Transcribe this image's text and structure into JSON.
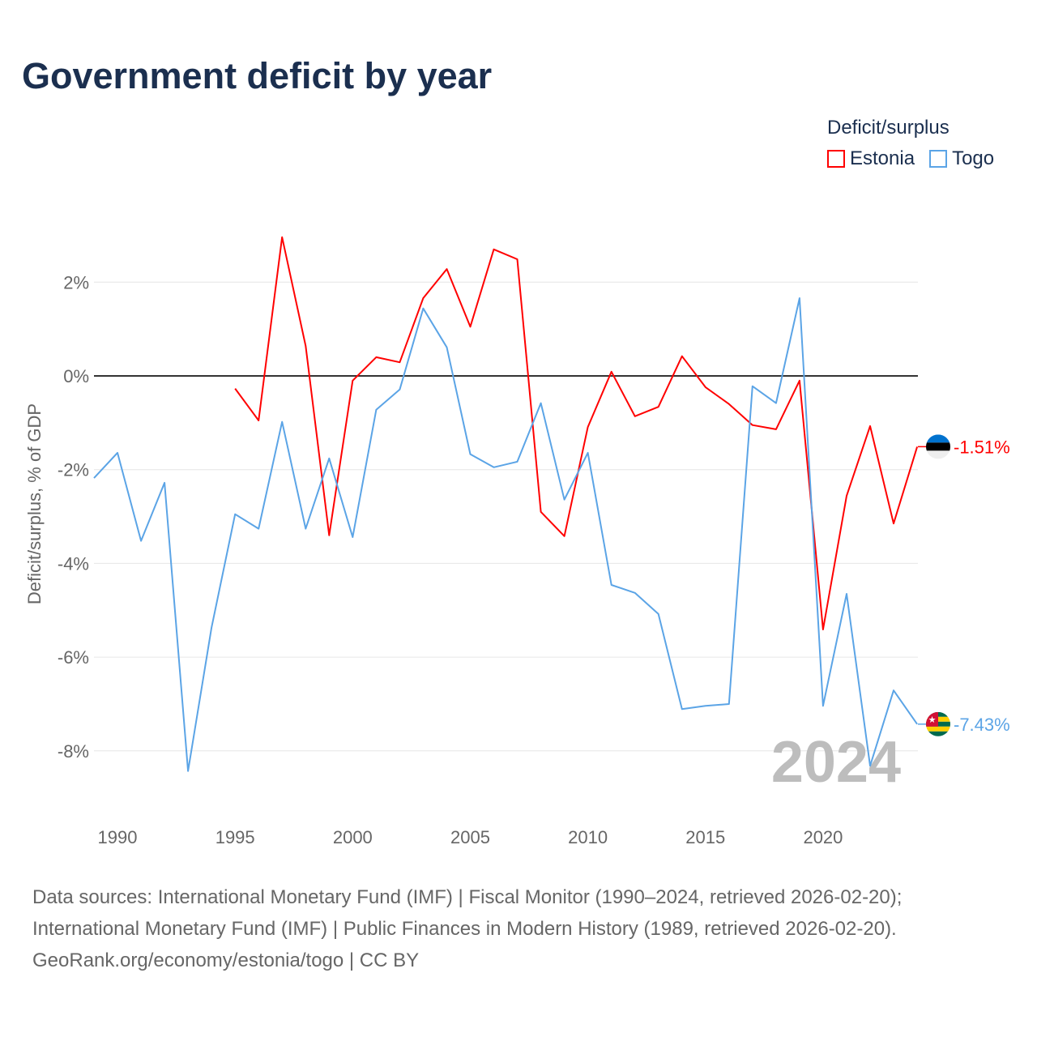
{
  "chart_data": {
    "type": "line",
    "title": "Government deficit by year",
    "xlabel": "",
    "ylabel": "Deficit/surplus, % of GDP",
    "xlim": [
      1989,
      2024
    ],
    "ylim": [
      -9.3,
      3.3
    ],
    "x_ticks": [
      1990,
      1995,
      2000,
      2005,
      2010,
      2015,
      2020
    ],
    "y_ticks": [
      2,
      0,
      -2,
      -4,
      -6,
      -8
    ],
    "y_tick_labels": [
      "2%",
      "0%",
      "-2%",
      "-4%",
      "-6%",
      "-8%"
    ],
    "grid": true,
    "legend_title": "Deficit/surplus",
    "legend_position": "top-right",
    "year_watermark": "2024",
    "series": [
      {
        "name": "Estonia",
        "color": "#ff0000",
        "end_label": "-1.51%",
        "x": [
          1995,
          1996,
          1997,
          1998,
          1999,
          2000,
          2001,
          2002,
          2003,
          2004,
          2005,
          2006,
          2007,
          2008,
          2009,
          2010,
          2011,
          2012,
          2013,
          2014,
          2015,
          2016,
          2017,
          2018,
          2019,
          2020,
          2021,
          2022,
          2023,
          2024
        ],
        "values": [
          -0.27,
          -0.95,
          2.96,
          0.64,
          -3.4,
          -0.1,
          0.4,
          0.29,
          1.66,
          2.28,
          1.05,
          2.7,
          2.49,
          -2.9,
          -3.42,
          -1.09,
          0.09,
          -0.86,
          -0.66,
          0.42,
          -0.24,
          -0.6,
          -1.05,
          -1.14,
          -0.1,
          -5.41,
          -2.56,
          -1.07,
          -3.15,
          -1.51
        ]
      },
      {
        "name": "Togo",
        "color": "#5ba4e6",
        "end_label": "-7.43%",
        "x": [
          1989,
          1990,
          1991,
          1992,
          1993,
          1994,
          1995,
          1996,
          1997,
          1998,
          1999,
          2000,
          2001,
          2002,
          2003,
          2004,
          2005,
          2006,
          2007,
          2008,
          2009,
          2010,
          2011,
          2012,
          2013,
          2014,
          2015,
          2016,
          2017,
          2018,
          2019,
          2020,
          2021,
          2022,
          2023,
          2024
        ],
        "values": [
          -2.18,
          -1.64,
          -3.52,
          -2.28,
          -8.43,
          -5.37,
          -2.95,
          -3.26,
          -0.98,
          -3.26,
          -1.76,
          -3.44,
          -0.72,
          -0.29,
          1.44,
          0.61,
          -1.67,
          -1.95,
          -1.83,
          -0.58,
          -2.64,
          -1.64,
          -4.46,
          -4.63,
          -5.08,
          -7.11,
          -7.04,
          -7.0,
          -0.22,
          -0.58,
          1.66,
          -7.04,
          -4.65,
          -8.32,
          -6.71,
          -7.43
        ]
      }
    ]
  },
  "footer": {
    "line1": "Data sources: International Monetary Fund (IMF) | Fiscal Monitor (1990–2024, retrieved 2026-02-20);",
    "line2": "International Monetary Fund (IMF) | Public Finances in Modern History (1989, retrieved 2026-02-20).",
    "line3": "GeoRank.org/economy/estonia/togo | CC BY"
  }
}
